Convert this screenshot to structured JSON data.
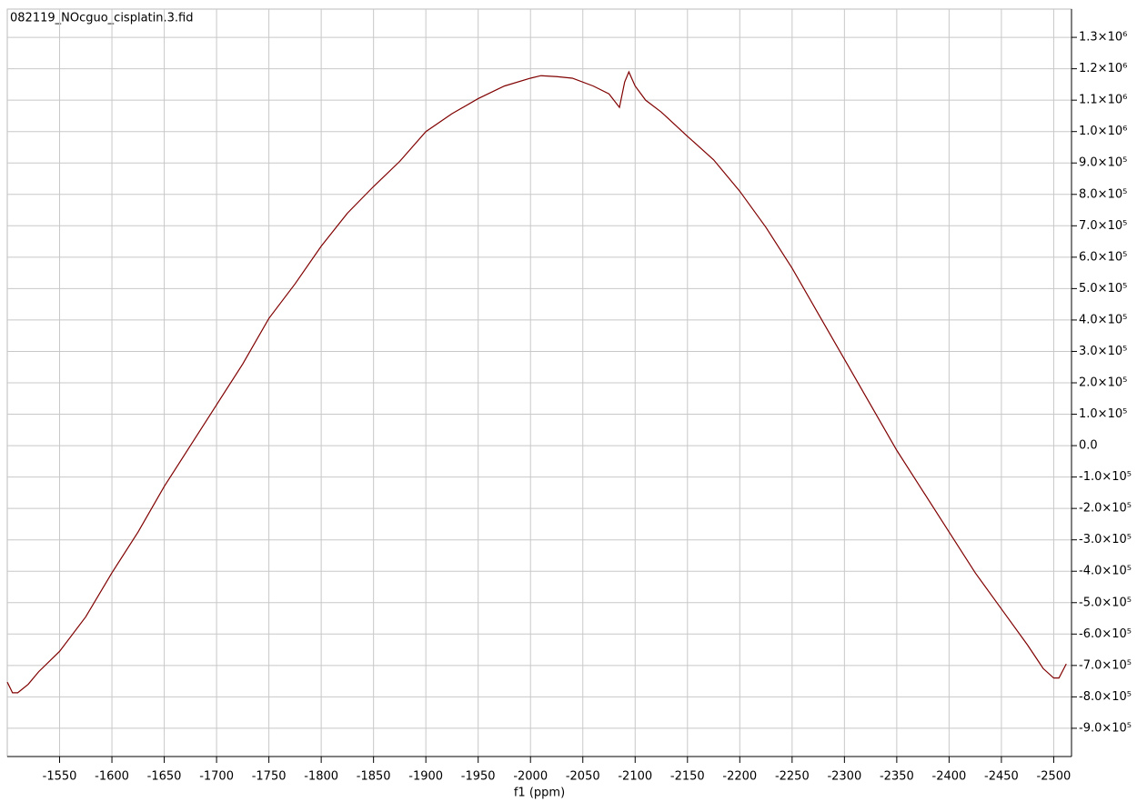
{
  "chart_data": {
    "type": "line",
    "title": "082119_NOcguo_cisplatin.3.fid",
    "x_label": "f1 (ppm)",
    "x": [
      -1500,
      -1505,
      -1510,
      -1520,
      -1530,
      -1550,
      -1575,
      -1600,
      -1625,
      -1650,
      -1675,
      -1700,
      -1725,
      -1750,
      -1775,
      -1800,
      -1825,
      -1850,
      -1875,
      -1900,
      -1925,
      -1950,
      -1975,
      -2000,
      -2010,
      -2025,
      -2040,
      -2060,
      -2075,
      -2085,
      -2090,
      -2094,
      -2100,
      -2110,
      -2125,
      -2150,
      -2175,
      -2200,
      -2225,
      -2250,
      -2275,
      -2300,
      -2325,
      -2350,
      -2375,
      -2400,
      -2425,
      -2450,
      -2475,
      -2490,
      -2500,
      -2505,
      -2512
    ],
    "series": [
      {
        "color": "#800000",
        "values": [
          -753000,
          -787000,
          -787000,
          -760000,
          -720000,
          -655000,
          -545000,
          -405000,
          -275000,
          -130000,
          0,
          130000,
          260000,
          405000,
          515000,
          635000,
          740000,
          825000,
          905000,
          1000000,
          1057000,
          1105000,
          1145000,
          1170000,
          1178000,
          1175000,
          1170000,
          1145000,
          1120000,
          1077000,
          1158000,
          1190000,
          1145000,
          1100000,
          1062000,
          985000,
          910000,
          810000,
          695000,
          565000,
          420000,
          275000,
          130000,
          -15000,
          -145000,
          -275000,
          -405000,
          -520000,
          -635000,
          -710000,
          -740000,
          -740000,
          -695000
        ]
      }
    ],
    "xlim": [
      -1500,
      -2517
    ],
    "ylim": [
      -990000,
      1390000
    ],
    "xticks": [
      -1550,
      -1600,
      -1650,
      -1700,
      -1750,
      -1800,
      -1850,
      -1900,
      -1950,
      -2000,
      -2050,
      -2100,
      -2150,
      -2200,
      -2250,
      -2300,
      -2350,
      -2400,
      -2450,
      -2500
    ],
    "yticks": [
      {
        "value": 1300000,
        "label": "1.3×10⁶"
      },
      {
        "value": 1200000,
        "label": "1.2×10⁶"
      },
      {
        "value": 1100000,
        "label": "1.1×10⁶"
      },
      {
        "value": 1000000,
        "label": "1.0×10⁶"
      },
      {
        "value": 900000,
        "label": "9.0×10⁵"
      },
      {
        "value": 800000,
        "label": "8.0×10⁵"
      },
      {
        "value": 700000,
        "label": "7.0×10⁵"
      },
      {
        "value": 600000,
        "label": "6.0×10⁵"
      },
      {
        "value": 500000,
        "label": "5.0×10⁵"
      },
      {
        "value": 400000,
        "label": "4.0×10⁵"
      },
      {
        "value": 300000,
        "label": "3.0×10⁵"
      },
      {
        "value": 200000,
        "label": "2.0×10⁵"
      },
      {
        "value": 100000,
        "label": "1.0×10⁵"
      },
      {
        "value": 0,
        "label": "0.0"
      },
      {
        "value": -100000,
        "label": "-1.0×10⁵"
      },
      {
        "value": -200000,
        "label": "-2.0×10⁵"
      },
      {
        "value": -300000,
        "label": "-3.0×10⁵"
      },
      {
        "value": -400000,
        "label": "-4.0×10⁵"
      },
      {
        "value": -500000,
        "label": "-5.0×10⁵"
      },
      {
        "value": -600000,
        "label": "-6.0×10⁵"
      },
      {
        "value": -700000,
        "label": "-7.0×10⁵"
      },
      {
        "value": -800000,
        "label": "-8.0×10⁵"
      },
      {
        "value": -900000,
        "label": "-9.0×10⁵"
      }
    ],
    "grid": true
  }
}
